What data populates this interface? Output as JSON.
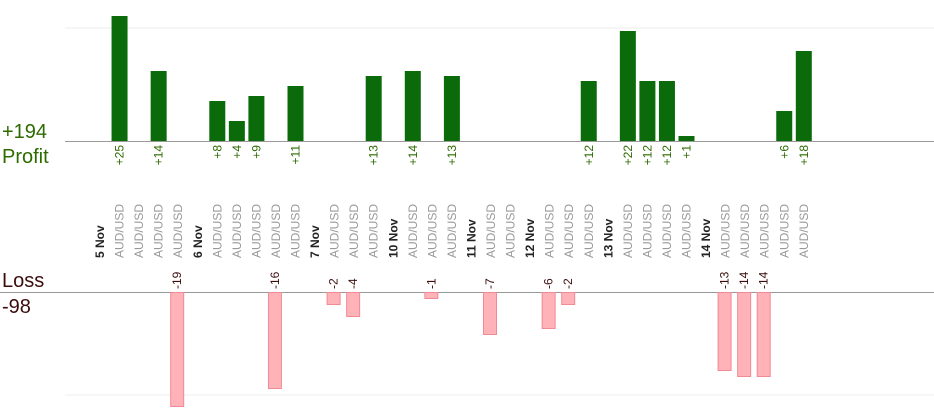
{
  "chart_data": {
    "type": "bar",
    "profit": {
      "label": "Profit",
      "total": "+194",
      "color": "#2d6b00"
    },
    "loss": {
      "label": "Loss",
      "total": "-98",
      "color": "#3b0d0d"
    },
    "colors": {
      "profit_bar": "#0b6b0b",
      "profit_label": "#2d6b00",
      "loss_bar": "#ffb3b8",
      "loss_label": "#3b0d0d",
      "grid": "#eeeeee",
      "axis": "#999999"
    },
    "items": [
      {
        "t": "d",
        "label": "5 Nov"
      },
      {
        "t": "b",
        "label": "AUD/USD",
        "value": 25,
        "text": "+25"
      },
      {
        "t": "b",
        "label": "AUD/USD"
      },
      {
        "t": "b",
        "label": "AUD/USD",
        "value": 14,
        "text": "+14"
      },
      {
        "t": "b",
        "label": "AUD/USD",
        "value": -19,
        "text": "-19"
      },
      {
        "t": "d",
        "label": "6 Nov"
      },
      {
        "t": "b",
        "label": "AUD/USD",
        "value": 8,
        "text": "+8"
      },
      {
        "t": "b",
        "label": "AUD/USD",
        "value": 4,
        "text": "+4"
      },
      {
        "t": "b",
        "label": "AUD/USD",
        "value": 9,
        "text": "+9"
      },
      {
        "t": "b",
        "label": "AUD/USD",
        "value": -16,
        "text": "-16"
      },
      {
        "t": "b",
        "label": "AUD/USD",
        "value": 11,
        "text": "+11"
      },
      {
        "t": "d",
        "label": "7 Nov"
      },
      {
        "t": "b",
        "label": "AUD/USD",
        "value": -2,
        "text": "-2"
      },
      {
        "t": "b",
        "label": "AUD/USD",
        "value": -4,
        "text": "-4"
      },
      {
        "t": "b",
        "label": "AUD/USD",
        "value": 13,
        "text": "+13"
      },
      {
        "t": "d",
        "label": "10 Nov"
      },
      {
        "t": "b",
        "label": "AUD/USD",
        "value": 14,
        "text": "+14"
      },
      {
        "t": "b",
        "label": "AUD/USD",
        "value": -1,
        "text": "-1"
      },
      {
        "t": "b",
        "label": "AUD/USD",
        "value": 13,
        "text": "+13"
      },
      {
        "t": "d",
        "label": "11 Nov"
      },
      {
        "t": "b",
        "label": "AUD/USD",
        "value": -7,
        "text": "-7"
      },
      {
        "t": "b",
        "label": "AUD/USD"
      },
      {
        "t": "d",
        "label": "12 Nov"
      },
      {
        "t": "b",
        "label": "AUD/USD",
        "value": -6,
        "text": "-6"
      },
      {
        "t": "b",
        "label": "AUD/USD",
        "value": -2,
        "text": "-2"
      },
      {
        "t": "b",
        "label": "AUD/USD",
        "value": 12,
        "text": "+12"
      },
      {
        "t": "d",
        "label": "13 Nov"
      },
      {
        "t": "b",
        "label": "AUD/USD",
        "value": 22,
        "text": "+22"
      },
      {
        "t": "b",
        "label": "AUD/USD",
        "value": 12,
        "text": "+12"
      },
      {
        "t": "b",
        "label": "AUD/USD",
        "value": 12,
        "text": "+12"
      },
      {
        "t": "b",
        "label": "AUD/USD",
        "value": 1,
        "text": "+1"
      },
      {
        "t": "d",
        "label": "14 Nov"
      },
      {
        "t": "b",
        "label": "AUD/USD",
        "value": -13,
        "text": "-13"
      },
      {
        "t": "b",
        "label": "AUD/USD",
        "value": -14,
        "text": "-14"
      },
      {
        "t": "b",
        "label": "AUD/USD",
        "value": -14,
        "text": "-14"
      },
      {
        "t": "b",
        "label": "AUD/USD",
        "value": 6,
        "text": "+6"
      },
      {
        "t": "b",
        "label": "AUD/USD",
        "value": 18,
        "text": "+18"
      }
    ]
  }
}
